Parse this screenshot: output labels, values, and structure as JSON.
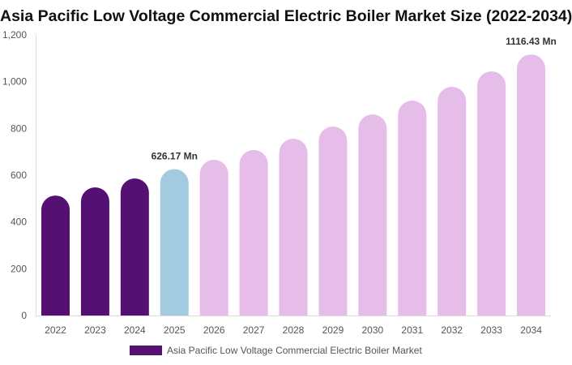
{
  "chart_data": {
    "type": "bar",
    "title": "Asia Pacific Low Voltage Commercial Electric Boiler Market Size (2022-2034)",
    "categories": [
      "2022",
      "2023",
      "2024",
      "2025",
      "2026",
      "2027",
      "2028",
      "2029",
      "2030",
      "2031",
      "2032",
      "2033",
      "2034"
    ],
    "series": [
      {
        "name": "Asia Pacific Low Voltage Commercial Electric Boiler Market",
        "values": [
          513,
          548,
          586,
          626.17,
          666,
          708,
          756,
          808,
          860,
          919,
          978,
          1044,
          1116.43
        ]
      }
    ],
    "data_labels": {
      "2025": "626.17 Mn",
      "2034": "1116.43 Mn"
    },
    "ylim": [
      0,
      1200
    ],
    "yticks": [
      0,
      200,
      400,
      600,
      800,
      1000,
      1200
    ],
    "ytick_labels": [
      "0",
      "200",
      "400",
      "600",
      "800",
      "1,000",
      "1,200"
    ],
    "xlabel": "",
    "ylabel": "",
    "grid": false,
    "legend_position": "bottom",
    "colors": {
      "historical": "#541173",
      "current": "#a3cbdf",
      "forecast": "#e6bde9"
    }
  }
}
